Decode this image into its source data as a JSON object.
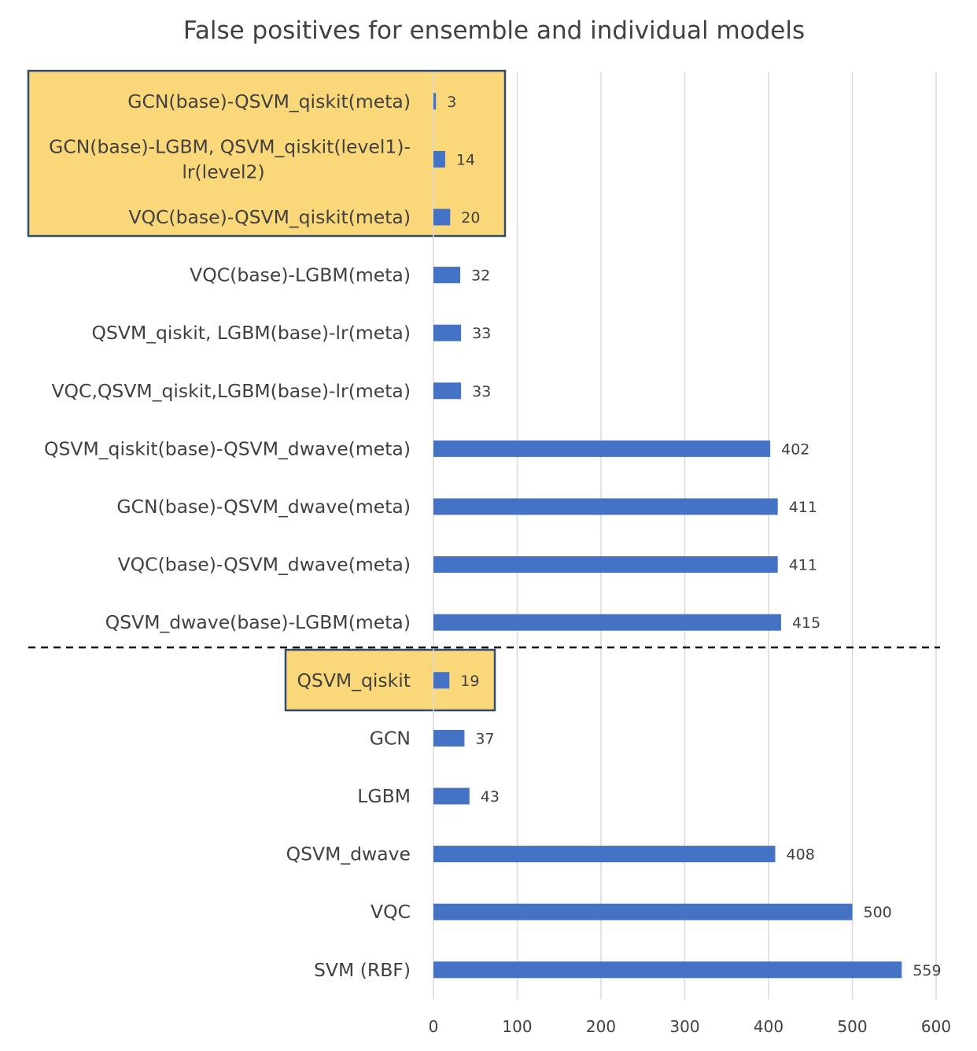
{
  "chart_data": {
    "type": "bar",
    "orientation": "horizontal",
    "title": "False positives for ensemble and individual models",
    "xlabel": "",
    "ylabel": "",
    "xlim": [
      0,
      600
    ],
    "x_ticks": [
      0,
      100,
      200,
      300,
      400,
      500,
      600
    ],
    "grid": "vertical",
    "bar_color": "#4472c4",
    "highlight_color": "#fad87a",
    "separator": "dashed line between ensemble models and individual models",
    "categories": [
      "GCN(base)-QSVM_qiskit(meta)",
      "GCN(base)-LGBM, QSVM_qiskit(level1)-lr(level2)",
      "VQC(base)-QSVM_qiskit(meta)",
      "VQC(base)-LGBM(meta)",
      "QSVM_qiskit, LGBM(base)-lr(meta)",
      "VQC,QSVM_qiskit,LGBM(base)-lr(meta)",
      "QSVM_qiskit(base)-QSVM_dwave(meta)",
      "GCN(base)-QSVM_dwave(meta)",
      "VQC(base)-QSVM_dwave(meta)",
      "QSVM_dwave(base)-LGBM(meta)",
      "QSVM_qiskit",
      "GCN",
      "LGBM",
      "QSVM_dwave",
      "VQC",
      "SVM (RBF)"
    ],
    "category_lines": [
      [
        "GCN(base)-QSVM_qiskit(meta)"
      ],
      [
        "GCN(base)-LGBM, QSVM_qiskit(level1)-",
        "lr(level2)"
      ],
      [
        "VQC(base)-QSVM_qiskit(meta)"
      ],
      [
        "VQC(base)-LGBM(meta)"
      ],
      [
        "QSVM_qiskit, LGBM(base)-lr(meta)"
      ],
      [
        "VQC,QSVM_qiskit,LGBM(base)-lr(meta)"
      ],
      [
        "QSVM_qiskit(base)-QSVM_dwave(meta)"
      ],
      [
        "GCN(base)-QSVM_dwave(meta)"
      ],
      [
        "VQC(base)-QSVM_dwave(meta)"
      ],
      [
        "QSVM_dwave(base)-LGBM(meta)"
      ],
      [
        "QSVM_qiskit"
      ],
      [
        "GCN"
      ],
      [
        "LGBM"
      ],
      [
        "QSVM_dwave"
      ],
      [
        "VQC"
      ],
      [
        "SVM (RBF)"
      ]
    ],
    "values": [
      3,
      14,
      20,
      32,
      33,
      33,
      402,
      411,
      411,
      415,
      19,
      37,
      43,
      408,
      500,
      559
    ],
    "data_labels": [
      "3",
      "14",
      "20",
      "32",
      "33",
      "33",
      "402",
      "411",
      "411",
      "415",
      "19",
      "37",
      "43",
      "408",
      "500",
      "559"
    ],
    "highlighted_groups": [
      [
        0,
        1,
        2
      ],
      [
        10
      ]
    ],
    "separator_after_index": 9
  }
}
